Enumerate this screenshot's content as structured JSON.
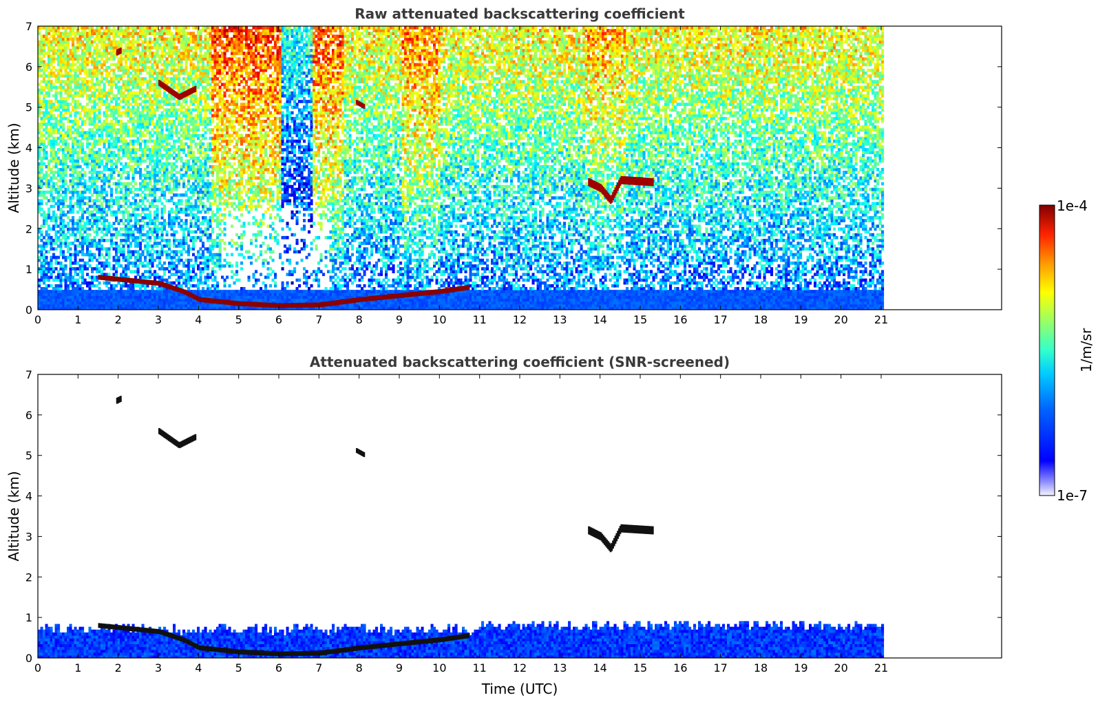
{
  "chart_data": [
    {
      "type": "heatmap",
      "title": "Raw attenuated backscattering coefficient",
      "ylabel": "Altitude (km)",
      "xlabel": "",
      "xlim": [
        0,
        24
      ],
      "ylim": [
        0,
        7
      ],
      "data_end_time": 21,
      "x_ticks": [
        0,
        1,
        2,
        3,
        4,
        5,
        6,
        7,
        8,
        9,
        10,
        11,
        12,
        13,
        14,
        15,
        16,
        17,
        18,
        19,
        20,
        21
      ],
      "y_ticks": [
        0,
        1,
        2,
        3,
        4,
        5,
        6,
        7
      ],
      "features": {
        "boundary_layer": [
          [
            1.5,
            0.8
          ],
          [
            2,
            0.75
          ],
          [
            3,
            0.65
          ],
          [
            3.6,
            0.45
          ],
          [
            4,
            0.25
          ],
          [
            5,
            0.15
          ],
          [
            6,
            0.1
          ],
          [
            7,
            0.12
          ],
          [
            8,
            0.25
          ],
          [
            9,
            0.35
          ],
          [
            10,
            0.45
          ],
          [
            10.7,
            0.55
          ]
        ],
        "cloud_14h": [
          [
            13.7,
            3.15
          ],
          [
            14.0,
            3.0
          ],
          [
            14.25,
            2.7
          ],
          [
            14.5,
            3.2
          ],
          [
            15.3,
            3.15
          ]
        ],
        "cloud_3h": [
          [
            3.0,
            5.6
          ],
          [
            3.5,
            5.25
          ],
          [
            3.9,
            5.45
          ]
        ],
        "cloud_2h": [
          [
            1.95,
            6.35
          ]
        ],
        "cloud_8h": [
          [
            7.95,
            5.1
          ]
        ]
      }
    },
    {
      "type": "heatmap",
      "title": "Attenuated backscattering coefficient (SNR-screened)",
      "ylabel": "Altitude (km)",
      "xlabel": "Time (UTC)",
      "xlim": [
        0,
        24
      ],
      "ylim": [
        0,
        7
      ],
      "data_end_time": 21,
      "x_ticks": [
        0,
        1,
        2,
        3,
        4,
        5,
        6,
        7,
        8,
        9,
        10,
        11,
        12,
        13,
        14,
        15,
        16,
        17,
        18,
        19,
        20,
        21
      ],
      "y_ticks": [
        0,
        1,
        2,
        3,
        4,
        5,
        6,
        7
      ]
    }
  ],
  "colorbar": {
    "label": "1/m/sr",
    "min_label": "1e-7",
    "max_label": "1e-4",
    "scale": "log",
    "colormap": "jet"
  },
  "colors": {
    "title": "#3a3a3a",
    "background": "#ffffff"
  }
}
